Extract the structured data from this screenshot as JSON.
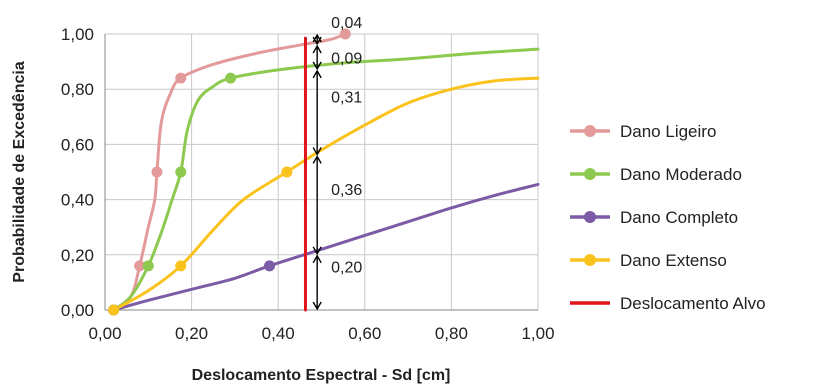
{
  "chart_data": {
    "type": "line",
    "title": "",
    "xlabel": "Deslocamento Espectral - Sd [cm]",
    "ylabel": "Probabilidade de Excedência",
    "xlim": [
      0,
      1
    ],
    "ylim": [
      0,
      1
    ],
    "x_ticks": [
      "0,00",
      "0,20",
      "0,40",
      "0,60",
      "0,80",
      "1,00"
    ],
    "y_ticks": [
      "0,00",
      "0,20",
      "0,40",
      "0,60",
      "0,80",
      "1,00"
    ],
    "grid": true,
    "legend_position": "right",
    "series": [
      {
        "name": "Dano Ligeiro",
        "color": "#E39A9A",
        "points": [
          [
            0.02,
            0.0
          ],
          [
            0.06,
            0.05
          ],
          [
            0.08,
            0.16
          ],
          [
            0.1,
            0.3
          ],
          [
            0.115,
            0.4
          ],
          [
            0.12,
            0.5
          ],
          [
            0.13,
            0.68
          ],
          [
            0.15,
            0.78
          ],
          [
            0.175,
            0.84
          ],
          [
            0.25,
            0.89
          ],
          [
            0.35,
            0.93
          ],
          [
            0.45,
            0.96
          ],
          [
            0.52,
            0.98
          ],
          [
            0.555,
            1.0
          ]
        ],
        "markers": [
          [
            0.02,
            0.0
          ],
          [
            0.08,
            0.16
          ],
          [
            0.12,
            0.5
          ],
          [
            0.175,
            0.84
          ],
          [
            0.555,
            1.0
          ]
        ]
      },
      {
        "name": "Dano Moderado",
        "color": "#8DC94F",
        "points": [
          [
            0.02,
            0.0
          ],
          [
            0.06,
            0.05
          ],
          [
            0.1,
            0.16
          ],
          [
            0.13,
            0.28
          ],
          [
            0.155,
            0.4
          ],
          [
            0.175,
            0.5
          ],
          [
            0.19,
            0.65
          ],
          [
            0.215,
            0.76
          ],
          [
            0.25,
            0.81
          ],
          [
            0.29,
            0.84
          ],
          [
            0.4,
            0.87
          ],
          [
            0.55,
            0.895
          ],
          [
            0.7,
            0.91
          ],
          [
            0.85,
            0.93
          ],
          [
            1.0,
            0.945
          ]
        ],
        "markers": [
          [
            0.02,
            0.0
          ],
          [
            0.1,
            0.16
          ],
          [
            0.175,
            0.5
          ],
          [
            0.29,
            0.84
          ]
        ]
      },
      {
        "name": "Dano Completo",
        "color": "#7B5BA6",
        "points": [
          [
            0.02,
            0.0
          ],
          [
            0.1,
            0.035
          ],
          [
            0.2,
            0.075
          ],
          [
            0.3,
            0.115
          ],
          [
            0.38,
            0.16
          ],
          [
            0.5,
            0.22
          ],
          [
            0.6,
            0.27
          ],
          [
            0.7,
            0.32
          ],
          [
            0.8,
            0.37
          ],
          [
            0.9,
            0.415
          ],
          [
            1.0,
            0.455
          ]
        ],
        "markers": [
          [
            0.02,
            0.0
          ],
          [
            0.38,
            0.16
          ]
        ]
      },
      {
        "name": "Dano Extenso",
        "color": "#FAC21C",
        "points": [
          [
            0.02,
            0.0
          ],
          [
            0.1,
            0.07
          ],
          [
            0.175,
            0.16
          ],
          [
            0.25,
            0.29
          ],
          [
            0.32,
            0.4
          ],
          [
            0.42,
            0.5
          ],
          [
            0.5,
            0.58
          ],
          [
            0.6,
            0.67
          ],
          [
            0.7,
            0.75
          ],
          [
            0.8,
            0.8
          ],
          [
            0.9,
            0.83
          ],
          [
            1.0,
            0.84
          ]
        ],
        "markers": [
          [
            0.02,
            0.0
          ],
          [
            0.175,
            0.16
          ],
          [
            0.42,
            0.5
          ]
        ]
      },
      {
        "name": "Deslocamento Alvo",
        "color": "#E0161B",
        "points": [
          [
            0.463,
            0.0
          ],
          [
            0.463,
            0.985
          ]
        ],
        "markers": []
      }
    ],
    "brackets": [
      {
        "label": "0,04",
        "y0": 0.96,
        "y1": 1.0
      },
      {
        "label": "0,09",
        "y0": 0.87,
        "y1": 0.96
      },
      {
        "label": "0,31",
        "y0": 0.56,
        "y1": 0.87
      },
      {
        "label": "0,36",
        "y0": 0.2,
        "y1": 0.56
      },
      {
        "label": "0,20",
        "y0": 0.0,
        "y1": 0.2
      }
    ],
    "bracket_x": 0.49
  }
}
